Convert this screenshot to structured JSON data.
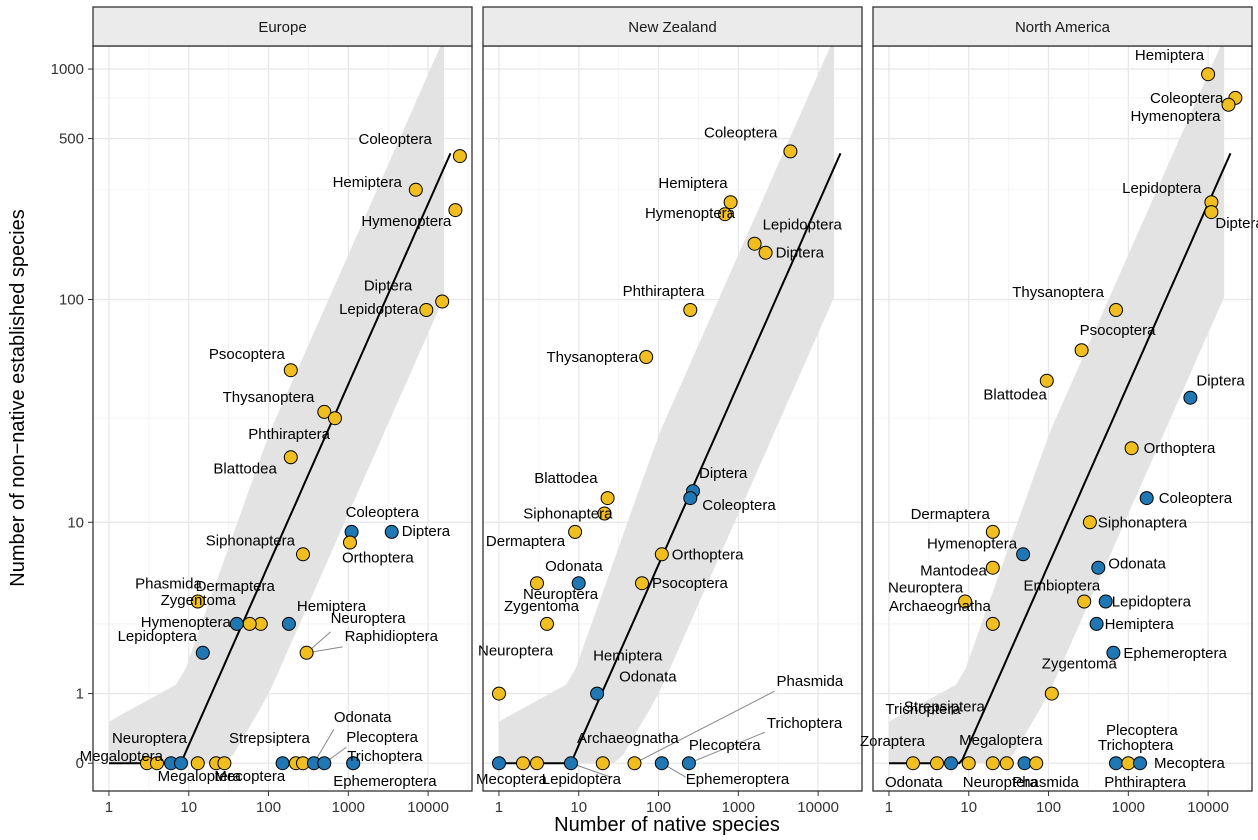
{
  "chart_data": {
    "type": "scatter",
    "xlabel": "Number of native species",
    "ylabel": "Number of non−native established species",
    "x_scale": "log",
    "y_scale": "pseudo-log",
    "x_ticks": [
      1,
      10,
      100,
      1000,
      10000
    ],
    "x_tick_labels": [
      "1",
      "10",
      "100",
      "1000",
      "10000"
    ],
    "y_ticks": [
      0,
      1,
      10,
      100,
      500,
      1000
    ],
    "y_tick_labels": [
      "0",
      "1",
      "10",
      "100",
      "500",
      "1000"
    ],
    "grid": true,
    "colors": {
      "yellow": "#f0be1e",
      "blue": "#1f77b4",
      "band": "#e3e3e3",
      "strip": "#ebebeb"
    },
    "panels": [
      {
        "title": "Europe",
        "points": [
          {
            "x": 25000,
            "y": 420,
            "color": "yellow",
            "label": "Coleoptera"
          },
          {
            "x": 7000,
            "y": 300,
            "color": "yellow",
            "label": "Hemiptera"
          },
          {
            "x": 22000,
            "y": 245,
            "color": "yellow",
            "label": "Hymenoptera"
          },
          {
            "x": 15000,
            "y": 98,
            "color": "yellow",
            "label": "Diptera"
          },
          {
            "x": 9500,
            "y": 90,
            "color": "yellow",
            "label": "Lepidoptera"
          },
          {
            "x": 190,
            "y": 49,
            "color": "yellow",
            "label": "Psocoptera"
          },
          {
            "x": 500,
            "y": 32,
            "color": "yellow",
            "label": "Thysanoptera"
          },
          {
            "x": 680,
            "y": 30,
            "color": "yellow",
            "label": "Phthiraptera"
          },
          {
            "x": 190,
            "y": 20,
            "color": "yellow",
            "label": "Blattodea"
          },
          {
            "x": 1100,
            "y": 9,
            "color": "blue",
            "label": "Coleoptera"
          },
          {
            "x": 3500,
            "y": 9,
            "color": "blue",
            "label": "Diptera"
          },
          {
            "x": 1050,
            "y": 8,
            "color": "yellow",
            "label": "Orthoptera"
          },
          {
            "x": 270,
            "y": 7,
            "color": "yellow",
            "label": "Siphonaptera"
          },
          {
            "x": 13,
            "y": 4,
            "color": "yellow",
            "label": "Phasmida"
          },
          {
            "x": 80,
            "y": 3,
            "color": "yellow",
            "label": "Dermaptera"
          },
          {
            "x": 58,
            "y": 3,
            "color": "yellow",
            "label": "Zygentoma"
          },
          {
            "x": 40,
            "y": 3,
            "color": "blue",
            "label": "Hymenoptera"
          },
          {
            "x": 180,
            "y": 3,
            "color": "blue",
            "label": "Hemiptera"
          },
          {
            "x": 15,
            "y": 2,
            "color": "blue",
            "label": "Lepidoptera"
          },
          {
            "x": 300,
            "y": 2,
            "color": "yellow",
            "label": "Neuroptera"
          },
          {
            "x": 3,
            "y": 0,
            "color": "yellow",
            "label": "Megaloptera"
          },
          {
            "x": 4,
            "y": 0,
            "color": "yellow",
            "label": ""
          },
          {
            "x": 6,
            "y": 0,
            "color": "blue",
            "label": "Neuroptera"
          },
          {
            "x": 8,
            "y": 0,
            "color": "blue",
            "label": "Megaloptera"
          },
          {
            "x": 13,
            "y": 0,
            "color": "yellow",
            "label": ""
          },
          {
            "x": 22,
            "y": 0,
            "color": "yellow",
            "label": ""
          },
          {
            "x": 28,
            "y": 0,
            "color": "yellow",
            "label": "Mecoptera"
          },
          {
            "x": 150,
            "y": 0,
            "color": "blue",
            "label": ""
          },
          {
            "x": 220,
            "y": 0,
            "color": "yellow",
            "label": "Strepsiptera"
          },
          {
            "x": 270,
            "y": 0,
            "color": "yellow",
            "label": "Raphidioptera"
          },
          {
            "x": 370,
            "y": 0,
            "color": "blue",
            "label": "Odonata"
          },
          {
            "x": 500,
            "y": 0,
            "color": "blue",
            "label": "Plecoptera"
          },
          {
            "x": 1150,
            "y": 0,
            "color": "blue",
            "label": "Trichoptera"
          },
          {
            "x": 1150,
            "y": 0,
            "color": "blue",
            "label": "Ephemeroptera"
          }
        ],
        "annotations": [
          "Coleoptera",
          "Hemiptera",
          "Hymenoptera",
          "Diptera",
          "Lepidoptera",
          "Psocoptera",
          "Thysanoptera",
          "Phthiraptera",
          "Blattodea",
          "Coleoptera",
          "Diptera",
          "Siphonaptera",
          "Orthoptera",
          "Phasmida",
          "Dermaptera",
          "Zygentoma",
          "Hymenoptera",
          "Hemiptera",
          "Neuroptera",
          "Raphidioptera",
          "Lepidoptera",
          "Neuroptera",
          "Megaloptera",
          "Strepsiptera",
          "Odonata",
          "Plecoptera",
          "Trichoptera",
          "Megaloptera",
          "Mecoptera",
          "Ephemeroptera"
        ]
      },
      {
        "title": "New Zealand",
        "points": [
          {
            "x": 4500,
            "y": 440,
            "color": "yellow",
            "label": "Coleoptera"
          },
          {
            "x": 800,
            "y": 265,
            "color": "yellow",
            "label": "Hemiptera"
          },
          {
            "x": 680,
            "y": 235,
            "color": "yellow",
            "label": "Hymenoptera"
          },
          {
            "x": 1600,
            "y": 175,
            "color": "yellow",
            "label": "Lepidoptera"
          },
          {
            "x": 2200,
            "y": 160,
            "color": "yellow",
            "label": "Diptera"
          },
          {
            "x": 250,
            "y": 90,
            "color": "yellow",
            "label": "Phthiraptera"
          },
          {
            "x": 70,
            "y": 56,
            "color": "yellow",
            "label": "Thysanoptera"
          },
          {
            "x": 270,
            "y": 14,
            "color": "blue",
            "label": "Diptera"
          },
          {
            "x": 250,
            "y": 13,
            "color": "blue",
            "label": "Coleoptera"
          },
          {
            "x": 23,
            "y": 13,
            "color": "yellow",
            "label": "Blattodea"
          },
          {
            "x": 21,
            "y": 11,
            "color": "yellow",
            "label": "Siphonaptera"
          },
          {
            "x": 9,
            "y": 9,
            "color": "yellow",
            "label": "Dermaptera"
          },
          {
            "x": 110,
            "y": 7,
            "color": "yellow",
            "label": "Orthoptera"
          },
          {
            "x": 10,
            "y": 5,
            "color": "blue",
            "label": "Odonata"
          },
          {
            "x": 3,
            "y": 5,
            "color": "yellow",
            "label": "Neuroptera"
          },
          {
            "x": 62,
            "y": 5,
            "color": "yellow",
            "label": "Psocoptera"
          },
          {
            "x": 4,
            "y": 3,
            "color": "yellow",
            "label": "Zygentoma"
          },
          {
            "x": 1,
            "y": 1,
            "color": "yellow",
            "label": "Neuroptera"
          },
          {
            "x": 17,
            "y": 1,
            "color": "blue",
            "label": "Hemiptera"
          },
          {
            "x": 1,
            "y": 0,
            "color": "blue",
            "label": "Mecoptera"
          },
          {
            "x": 2,
            "y": 0,
            "color": "yellow",
            "label": ""
          },
          {
            "x": 3,
            "y": 0,
            "color": "yellow",
            "label": "Archaeognatha"
          },
          {
            "x": 8,
            "y": 0,
            "color": "blue",
            "label": "Lepidoptera"
          },
          {
            "x": 20,
            "y": 0,
            "color": "yellow",
            "label": ""
          },
          {
            "x": 50,
            "y": 0,
            "color": "yellow",
            "label": "Phasmida"
          },
          {
            "x": 110,
            "y": 0,
            "color": "blue",
            "label": "Ephemeroptera"
          },
          {
            "x": 240,
            "y": 0,
            "color": "blue",
            "label": "Plecoptera"
          }
        ],
        "annotations": [
          "Coleoptera",
          "Hemiptera",
          "Hymenoptera",
          "Lepidoptera",
          "Diptera",
          "Phthiraptera",
          "Thysanoptera",
          "Blattodea",
          "Diptera",
          "Coleoptera",
          "Siphonaptera",
          "Dermaptera",
          "Orthoptera",
          "Odonata",
          "Neuroptera",
          "Psocoptera",
          "Zygentoma",
          "Hemiptera",
          "Phasmida",
          "Neuroptera",
          "Odonata",
          "Archaeognatha",
          "Trichoptera",
          "Plecoptera",
          "Mecoptera",
          "Lepidoptera",
          "Ephemeroptera"
        ]
      },
      {
        "title": "North America",
        "points": [
          {
            "x": 10000,
            "y": 950,
            "color": "yellow",
            "label": "Hemiptera"
          },
          {
            "x": 22000,
            "y": 750,
            "color": "yellow",
            "label": "Coleoptera"
          },
          {
            "x": 18000,
            "y": 700,
            "color": "yellow",
            "label": "Hymenoptera"
          },
          {
            "x": 11000,
            "y": 265,
            "color": "yellow",
            "label": "Lepidoptera"
          },
          {
            "x": 11000,
            "y": 240,
            "color": "yellow",
            "label": "Diptera"
          },
          {
            "x": 700,
            "y": 90,
            "color": "yellow",
            "label": "Thysanoptera"
          },
          {
            "x": 260,
            "y": 60,
            "color": "yellow",
            "label": "Psocoptera"
          },
          {
            "x": 95,
            "y": 44,
            "color": "yellow",
            "label": "Blattodea"
          },
          {
            "x": 6000,
            "y": 37,
            "color": "blue",
            "label": "Diptera"
          },
          {
            "x": 1100,
            "y": 22,
            "color": "yellow",
            "label": "Orthoptera"
          },
          {
            "x": 1700,
            "y": 13,
            "color": "blue",
            "label": "Coleoptera"
          },
          {
            "x": 330,
            "y": 10,
            "color": "yellow",
            "label": "Siphonaptera"
          },
          {
            "x": 20,
            "y": 9,
            "color": "yellow",
            "label": "Dermaptera"
          },
          {
            "x": 48,
            "y": 7,
            "color": "blue",
            "label": "Hymenoptera"
          },
          {
            "x": 20,
            "y": 6,
            "color": "yellow",
            "label": "Mantodea"
          },
          {
            "x": 420,
            "y": 6,
            "color": "blue",
            "label": "Odonata"
          },
          {
            "x": 9,
            "y": 4,
            "color": "yellow",
            "label": "Neuroptera"
          },
          {
            "x": 280,
            "y": 4,
            "color": "yellow",
            "label": "Embioptera"
          },
          {
            "x": 520,
            "y": 4,
            "color": "blue",
            "label": "Lepidoptera"
          },
          {
            "x": 400,
            "y": 3,
            "color": "blue",
            "label": "Hemiptera"
          },
          {
            "x": 20,
            "y": 3,
            "color": "yellow",
            "label": "Archaeognatha"
          },
          {
            "x": 650,
            "y": 2,
            "color": "blue",
            "label": "Ephemeroptera"
          },
          {
            "x": 110,
            "y": 1,
            "color": "yellow",
            "label": "Zygentoma"
          },
          {
            "x": 2,
            "y": 0,
            "color": "yellow",
            "label": "Odonata"
          },
          {
            "x": 4,
            "y": 0,
            "color": "yellow",
            "label": "Zoraptera"
          },
          {
            "x": 6,
            "y": 0,
            "color": "blue",
            "label": ""
          },
          {
            "x": 10,
            "y": 0,
            "color": "yellow",
            "label": ""
          },
          {
            "x": 20,
            "y": 0,
            "color": "yellow",
            "label": ""
          },
          {
            "x": 30,
            "y": 0,
            "color": "yellow",
            "label": "Neuroptera"
          },
          {
            "x": 50,
            "y": 0,
            "color": "blue",
            "label": "Megaloptera"
          },
          {
            "x": 70,
            "y": 0,
            "color": "yellow",
            "label": "Phasmida"
          },
          {
            "x": 700,
            "y": 0,
            "color": "blue",
            "label": "Plecoptera"
          },
          {
            "x": 1000,
            "y": 0,
            "color": "yellow",
            "label": "Phthiraptera"
          },
          {
            "x": 1400,
            "y": 0,
            "color": "blue",
            "label": "Mecoptera"
          }
        ],
        "annotations": [
          "Hemiptera",
          "Coleoptera",
          "Hymenoptera",
          "Lepidoptera",
          "Diptera",
          "Thysanoptera",
          "Psocoptera",
          "Blattodea",
          "Diptera",
          "Orthoptera",
          "Coleoptera",
          "Dermaptera",
          "Siphonaptera",
          "Hymenoptera",
          "Odonata",
          "Mantodea",
          "Embioptera",
          "Neuroptera",
          "Lepidoptera",
          "Hemiptera",
          "Archaeognatha",
          "Ephemeroptera",
          "Strepsiptera",
          "Zygentoma",
          "Trichoptera",
          "Plecoptera",
          "Zoraptera",
          "Megaloptera",
          "Trichoptera",
          "Mecoptera",
          "Odonata",
          "Neuroptera",
          "Phasmida",
          "Phthiraptera"
        ]
      }
    ]
  }
}
